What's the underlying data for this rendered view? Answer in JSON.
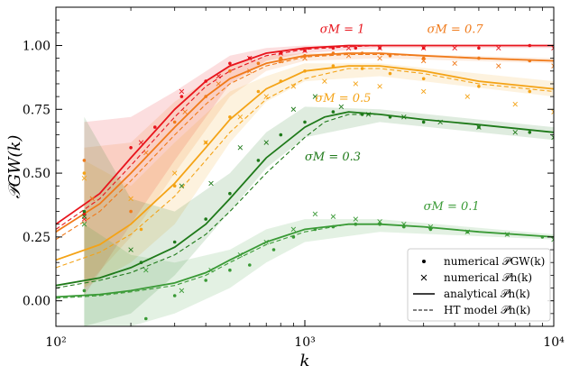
{
  "chart_data": {
    "type": "line",
    "xlabel": "k",
    "ylabel": "𝒫GW(k)",
    "xscale": "log",
    "xlim": [
      100,
      10000
    ],
    "ylim": [
      -0.1,
      1.15
    ],
    "x_ticks": [
      {
        "value": 100,
        "label": "10²"
      },
      {
        "value": 1000,
        "label": "10³"
      },
      {
        "value": 10000,
        "label": "10⁴"
      }
    ],
    "y_ticks": [
      {
        "value": 0.0,
        "label": "0.00"
      },
      {
        "value": 0.25,
        "label": "0.25"
      },
      {
        "value": 0.5,
        "label": "0.50"
      },
      {
        "value": 0.75,
        "label": "0.75"
      },
      {
        "value": 1.0,
        "label": "1.00"
      }
    ],
    "legend": {
      "placement": "lower-right",
      "entries": [
        {
          "marker": "dot",
          "label": "numerical 𝒫GW(k)"
        },
        {
          "marker": "cross",
          "label": "numerical 𝒫h(k)"
        },
        {
          "marker": "solid",
          "label": "analytical 𝒫h(k)"
        },
        {
          "marker": "dashed",
          "label": "HT model 𝒫h(k)"
        }
      ]
    },
    "series": [
      {
        "sigma_label": "σM = 1",
        "color": "#e8141c",
        "label_pos": {
          "x": 1150,
          "y": 1.05
        },
        "analytical": {
          "x": [
            100,
            150,
            200,
            300,
            400,
            500,
            700,
            1000,
            1500,
            2000,
            3000,
            5000,
            10000
          ],
          "y": [
            0.3,
            0.42,
            0.56,
            0.75,
            0.86,
            0.92,
            0.97,
            0.99,
            1.0,
            1.0,
            1.0,
            1.0,
            1.0
          ]
        },
        "ht_model": {
          "x": [
            100,
            150,
            200,
            300,
            400,
            500,
            700,
            1000,
            1500,
            2000,
            3000,
            5000,
            10000
          ],
          "y": [
            0.28,
            0.4,
            0.53,
            0.72,
            0.84,
            0.9,
            0.96,
            0.985,
            0.995,
            1.0,
            1.0,
            1.0,
            1.0
          ]
        },
        "dots": {
          "x": [
            130,
            200,
            250,
            320,
            400,
            500,
            600,
            800,
            1000,
            1300,
            1600,
            2000,
            3000,
            5000,
            8000
          ],
          "y": [
            0.34,
            0.6,
            0.68,
            0.8,
            0.86,
            0.93,
            0.95,
            0.97,
            0.98,
            0.99,
            0.99,
            0.99,
            0.99,
            0.99,
            1.0
          ]
        },
        "crosses": {
          "x": [
            130,
            220,
            320,
            450,
            600,
            800,
            1000,
            1500,
            2000,
            3000,
            4000,
            6000,
            10000
          ],
          "y": [
            0.32,
            0.62,
            0.82,
            0.88,
            0.95,
            0.97,
            0.98,
            0.99,
            0.99,
            0.99,
            0.99,
            0.99,
            0.99
          ]
        },
        "band": {
          "x": [
            130,
            200,
            300,
            500,
            700,
            1000,
            2000,
            10000
          ],
          "lo": [
            0.02,
            0.3,
            0.55,
            0.85,
            0.94,
            0.97,
            0.99,
            0.99
          ],
          "hi": [
            0.7,
            0.72,
            0.82,
            0.96,
            0.99,
            1.0,
            1.0,
            1.0
          ]
        }
      },
      {
        "sigma_label": "σM = 0.7",
        "color": "#f07a1a",
        "label_pos": {
          "x": 3100,
          "y": 1.05
        },
        "analytical": {
          "x": [
            100,
            150,
            200,
            300,
            400,
            500,
            700,
            1000,
            1500,
            2000,
            3000,
            5000,
            10000
          ],
          "y": [
            0.27,
            0.38,
            0.5,
            0.68,
            0.8,
            0.87,
            0.93,
            0.96,
            0.97,
            0.97,
            0.96,
            0.95,
            0.94
          ]
        },
        "ht_model": {
          "x": [
            100,
            150,
            200,
            300,
            400,
            500,
            700,
            1000,
            1500,
            2000,
            3000,
            5000,
            10000
          ],
          "y": [
            0.24,
            0.35,
            0.47,
            0.65,
            0.77,
            0.85,
            0.92,
            0.955,
            0.965,
            0.965,
            0.96,
            0.95,
            0.94
          ]
        },
        "dots": {
          "x": [
            130,
            200,
            300,
            400,
            500,
            650,
            800,
            1000,
            1300,
            1700,
            2200,
            3000,
            5000,
            8000
          ],
          "y": [
            0.55,
            0.35,
            0.7,
            0.8,
            0.9,
            0.93,
            0.95,
            0.96,
            0.97,
            0.97,
            0.96,
            0.95,
            0.95,
            0.94
          ]
        },
        "crosses": {
          "x": [
            140,
            230,
            330,
            450,
            600,
            800,
            1000,
            1500,
            2000,
            3000,
            4000,
            6000,
            10000
          ],
          "y": [
            0.4,
            0.58,
            0.74,
            0.85,
            0.9,
            0.94,
            0.95,
            0.96,
            0.95,
            0.94,
            0.93,
            0.92,
            0.92
          ]
        },
        "band": {
          "x": [
            130,
            200,
            300,
            500,
            700,
            1000,
            2000,
            10000
          ],
          "lo": [
            0.05,
            0.25,
            0.5,
            0.8,
            0.9,
            0.94,
            0.95,
            0.93
          ],
          "hi": [
            0.6,
            0.62,
            0.78,
            0.92,
            0.96,
            0.97,
            0.97,
            0.95
          ]
        }
      },
      {
        "sigma_label": "σM = 0.5",
        "color": "#f4a316",
        "label_pos": {
          "x": 1100,
          "y": 0.78
        },
        "analytical": {
          "x": [
            100,
            150,
            200,
            300,
            400,
            500,
            700,
            1000,
            1500,
            2000,
            3000,
            5000,
            10000
          ],
          "y": [
            0.16,
            0.22,
            0.3,
            0.46,
            0.6,
            0.71,
            0.83,
            0.9,
            0.92,
            0.92,
            0.9,
            0.86,
            0.83
          ]
        },
        "ht_model": {
          "x": [
            100,
            150,
            200,
            300,
            400,
            500,
            700,
            1000,
            1500,
            2000,
            3000,
            5000,
            10000
          ],
          "y": [
            0.13,
            0.19,
            0.26,
            0.41,
            0.55,
            0.66,
            0.79,
            0.87,
            0.91,
            0.91,
            0.89,
            0.85,
            0.82
          ]
        },
        "dots": {
          "x": [
            130,
            220,
            300,
            400,
            500,
            650,
            800,
            1000,
            1300,
            1700,
            2200,
            3000,
            5000,
            8000
          ],
          "y": [
            0.5,
            0.28,
            0.45,
            0.62,
            0.72,
            0.82,
            0.86,
            0.9,
            0.92,
            0.91,
            0.89,
            0.87,
            0.84,
            0.82
          ]
        },
        "crosses": {
          "x": [
            130,
            200,
            300,
            400,
            550,
            700,
            900,
            1200,
            1600,
            2000,
            3000,
            4500,
            7000,
            10000
          ],
          "y": [
            0.48,
            0.4,
            0.5,
            0.62,
            0.72,
            0.8,
            0.84,
            0.86,
            0.85,
            0.84,
            0.82,
            0.8,
            0.77,
            0.74
          ]
        },
        "band": {
          "x": [
            130,
            200,
            300,
            500,
            700,
            1000,
            2000,
            10000
          ],
          "lo": [
            0.05,
            0.15,
            0.3,
            0.62,
            0.78,
            0.86,
            0.88,
            0.8
          ],
          "hi": [
            0.55,
            0.45,
            0.62,
            0.82,
            0.88,
            0.93,
            0.93,
            0.86
          ]
        }
      },
      {
        "sigma_label": "σM = 0.3",
        "color": "#1f7a1a",
        "label_pos": {
          "x": 1000,
          "y": 0.55
        },
        "analytical": {
          "x": [
            100,
            150,
            200,
            300,
            400,
            500,
            700,
            1000,
            1200,
            1500,
            2000,
            3000,
            5000,
            10000
          ],
          "y": [
            0.06,
            0.09,
            0.13,
            0.21,
            0.3,
            0.4,
            0.56,
            0.68,
            0.72,
            0.74,
            0.73,
            0.71,
            0.69,
            0.66
          ]
        },
        "ht_model": {
          "x": [
            100,
            150,
            200,
            300,
            400,
            500,
            700,
            1000,
            1200,
            1500,
            2000,
            3000,
            5000,
            10000
          ],
          "y": [
            0.05,
            0.08,
            0.11,
            0.18,
            0.26,
            0.35,
            0.5,
            0.64,
            0.7,
            0.73,
            0.73,
            0.71,
            0.69,
            0.66
          ]
        },
        "dots": {
          "x": [
            130,
            220,
            300,
            400,
            500,
            650,
            800,
            1000,
            1300,
            1700,
            2200,
            3000,
            5000,
            8000
          ],
          "y": [
            0.35,
            0.15,
            0.23,
            0.32,
            0.42,
            0.55,
            0.65,
            0.7,
            0.74,
            0.73,
            0.72,
            0.7,
            0.68,
            0.66
          ]
        },
        "crosses": {
          "x": [
            130,
            200,
            320,
            420,
            550,
            700,
            900,
            1100,
            1400,
            1800,
            2500,
            3500,
            5000,
            7000,
            10000
          ],
          "y": [
            0.33,
            0.2,
            0.45,
            0.46,
            0.6,
            0.62,
            0.75,
            0.8,
            0.76,
            0.73,
            0.72,
            0.7,
            0.68,
            0.66,
            0.64
          ]
        },
        "band": {
          "x": [
            130,
            200,
            300,
            500,
            700,
            1000,
            2000,
            10000
          ],
          "lo": [
            -0.1,
            -0.05,
            0.1,
            0.35,
            0.52,
            0.64,
            0.7,
            0.63
          ],
          "hi": [
            0.72,
            0.4,
            0.35,
            0.5,
            0.66,
            0.76,
            0.75,
            0.68
          ]
        }
      },
      {
        "sigma_label": "σM = 0.1",
        "color": "#3a9a36",
        "label_pos": {
          "x": 3000,
          "y": 0.355
        },
        "analytical": {
          "x": [
            100,
            150,
            200,
            300,
            400,
            500,
            700,
            1000,
            1500,
            2000,
            3000,
            5000,
            10000
          ],
          "y": [
            0.015,
            0.025,
            0.04,
            0.07,
            0.11,
            0.16,
            0.23,
            0.28,
            0.3,
            0.3,
            0.29,
            0.27,
            0.25
          ]
        },
        "ht_model": {
          "x": [
            100,
            150,
            200,
            300,
            400,
            500,
            700,
            1000,
            1500,
            2000,
            3000,
            5000,
            10000
          ],
          "y": [
            0.01,
            0.02,
            0.035,
            0.06,
            0.1,
            0.15,
            0.22,
            0.27,
            0.3,
            0.3,
            0.29,
            0.27,
            0.25
          ]
        },
        "dots": {
          "x": [
            130,
            230,
            300,
            400,
            500,
            600,
            750,
            900,
            1100,
            1300,
            1600,
            2000,
            2500,
            3200,
            4500,
            6500,
            9000
          ],
          "y": [
            0.04,
            -0.07,
            0.02,
            0.08,
            0.12,
            0.14,
            0.2,
            0.25,
            0.28,
            0.29,
            0.3,
            0.3,
            0.29,
            0.28,
            0.27,
            0.26,
            0.25
          ]
        },
        "crosses": {
          "x": [
            130,
            230,
            320,
            420,
            550,
            700,
            900,
            1100,
            1300,
            1600,
            2000,
            2500,
            3200,
            4500,
            6500,
            10000
          ],
          "y": [
            0.3,
            0.12,
            0.04,
            0.12,
            0.18,
            0.23,
            0.28,
            0.34,
            0.33,
            0.32,
            0.31,
            0.3,
            0.29,
            0.27,
            0.26,
            0.24
          ]
        },
        "band": {
          "x": [
            130,
            200,
            300,
            500,
            700,
            1000,
            2000,
            10000
          ],
          "lo": [
            -0.1,
            -0.1,
            -0.05,
            0.05,
            0.15,
            0.23,
            0.27,
            0.24
          ],
          "hi": [
            0.3,
            0.18,
            0.15,
            0.2,
            0.28,
            0.32,
            0.32,
            0.26
          ]
        }
      }
    ]
  }
}
